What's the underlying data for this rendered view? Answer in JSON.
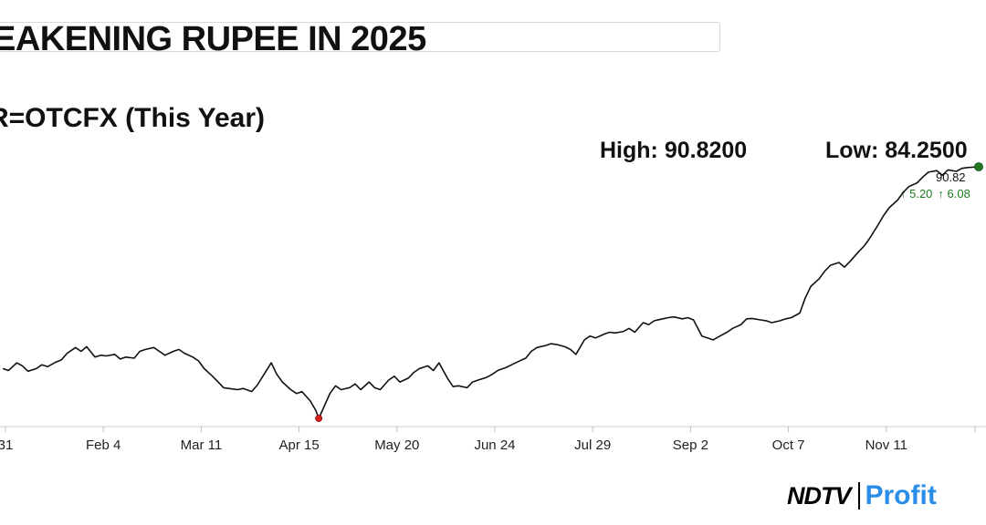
{
  "header": {
    "title": "EAKENING RUPEE IN 2025",
    "subtitle": "R=OTCFX (This Year)"
  },
  "stats": {
    "high_label": "High: 90.8200",
    "low_label": "Low: 84.2500",
    "last_price": "90.82",
    "change_1": "↑ 5.20",
    "change_2": "↑ 6.08"
  },
  "logo": {
    "brand": "NDTV",
    "product": "Profit"
  },
  "colors": {
    "line": "#111111",
    "low_marker": "#d62020",
    "last_marker": "#1f7a1f",
    "change": "#1f7a1f",
    "brand_accent": "#2a8ee8"
  },
  "chart_data": {
    "type": "line",
    "title": "",
    "xlabel": "",
    "ylabel": "",
    "x_ticks": [
      "31",
      "Feb 4",
      "Mar 11",
      "Apr 15",
      "May 20",
      "Jun 24",
      "Jul 29",
      "Sep 2",
      "Oct 7",
      "Nov 11"
    ],
    "x_range": [
      "2024-12-31",
      "2025-12-16"
    ],
    "ylim": [
      84.25,
      90.82
    ],
    "grid": false,
    "markers": [
      {
        "label": "low",
        "date": "2025-04-24",
        "value": 84.25
      },
      {
        "label": "last",
        "date": "2025-12-16",
        "value": 90.82
      }
    ],
    "series": [
      {
        "points": [
          [
            "2025-01-01",
            85.55
          ],
          [
            "2025-01-03",
            85.5
          ],
          [
            "2025-01-06",
            85.7
          ],
          [
            "2025-01-08",
            85.62
          ],
          [
            "2025-01-10",
            85.48
          ],
          [
            "2025-01-13",
            85.55
          ],
          [
            "2025-01-15",
            85.65
          ],
          [
            "2025-01-17",
            85.6
          ],
          [
            "2025-01-20",
            85.72
          ],
          [
            "2025-01-22",
            85.78
          ],
          [
            "2025-01-24",
            85.95
          ],
          [
            "2025-01-27",
            86.1
          ],
          [
            "2025-01-29",
            86.0
          ],
          [
            "2025-01-31",
            86.12
          ],
          [
            "2025-02-03",
            85.85
          ],
          [
            "2025-02-05",
            85.9
          ],
          [
            "2025-02-07",
            85.88
          ],
          [
            "2025-02-10",
            85.92
          ],
          [
            "2025-02-12",
            85.8
          ],
          [
            "2025-02-14",
            85.85
          ],
          [
            "2025-02-17",
            85.82
          ],
          [
            "2025-02-19",
            86.0
          ],
          [
            "2025-02-21",
            86.05
          ],
          [
            "2025-02-24",
            86.1
          ],
          [
            "2025-02-26",
            86.0
          ],
          [
            "2025-02-28",
            85.9
          ],
          [
            "2025-03-03",
            86.0
          ],
          [
            "2025-03-05",
            86.05
          ],
          [
            "2025-03-07",
            85.95
          ],
          [
            "2025-03-10",
            85.85
          ],
          [
            "2025-03-12",
            85.75
          ],
          [
            "2025-03-14",
            85.55
          ],
          [
            "2025-03-17",
            85.35
          ],
          [
            "2025-03-19",
            85.2
          ],
          [
            "2025-03-21",
            85.05
          ],
          [
            "2025-03-24",
            85.02
          ],
          [
            "2025-03-26",
            85.0
          ],
          [
            "2025-03-28",
            85.03
          ],
          [
            "2025-03-31",
            84.95
          ],
          [
            "2025-04-02",
            85.12
          ],
          [
            "2025-04-04",
            85.35
          ],
          [
            "2025-04-07",
            85.7
          ],
          [
            "2025-04-09",
            85.4
          ],
          [
            "2025-04-11",
            85.2
          ],
          [
            "2025-04-14",
            85.0
          ],
          [
            "2025-04-16",
            84.9
          ],
          [
            "2025-04-18",
            84.95
          ],
          [
            "2025-04-21",
            84.7
          ],
          [
            "2025-04-23",
            84.45
          ],
          [
            "2025-04-24",
            84.25
          ],
          [
            "2025-04-28",
            84.9
          ],
          [
            "2025-04-30",
            85.1
          ],
          [
            "2025-05-02",
            85.0
          ],
          [
            "2025-05-05",
            85.05
          ],
          [
            "2025-05-07",
            85.15
          ],
          [
            "2025-05-09",
            85.0
          ],
          [
            "2025-05-12",
            85.2
          ],
          [
            "2025-05-14",
            85.05
          ],
          [
            "2025-05-16",
            85.0
          ],
          [
            "2025-05-19",
            85.25
          ],
          [
            "2025-05-21",
            85.35
          ],
          [
            "2025-05-23",
            85.2
          ],
          [
            "2025-05-26",
            85.3
          ],
          [
            "2025-05-28",
            85.45
          ],
          [
            "2025-05-30",
            85.55
          ],
          [
            "2025-06-02",
            85.62
          ],
          [
            "2025-06-04",
            85.5
          ],
          [
            "2025-06-06",
            85.7
          ],
          [
            "2025-06-09",
            85.3
          ],
          [
            "2025-06-11",
            85.08
          ],
          [
            "2025-06-13",
            85.1
          ],
          [
            "2025-06-16",
            85.05
          ],
          [
            "2025-06-18",
            85.2
          ],
          [
            "2025-06-20",
            85.25
          ],
          [
            "2025-06-23",
            85.32
          ],
          [
            "2025-06-25",
            85.4
          ],
          [
            "2025-06-27",
            85.5
          ],
          [
            "2025-06-30",
            85.58
          ],
          [
            "2025-07-02",
            85.65
          ],
          [
            "2025-07-04",
            85.72
          ],
          [
            "2025-07-07",
            85.82
          ],
          [
            "2025-07-09",
            86.0
          ],
          [
            "2025-07-11",
            86.1
          ],
          [
            "2025-07-14",
            86.15
          ],
          [
            "2025-07-16",
            86.2
          ],
          [
            "2025-07-18",
            86.18
          ],
          [
            "2025-07-21",
            86.12
          ],
          [
            "2025-07-23",
            86.05
          ],
          [
            "2025-07-25",
            85.92
          ],
          [
            "2025-07-28",
            86.3
          ],
          [
            "2025-07-30",
            86.4
          ],
          [
            "2025-08-01",
            86.35
          ],
          [
            "2025-08-04",
            86.45
          ],
          [
            "2025-08-06",
            86.5
          ],
          [
            "2025-08-08",
            86.48
          ],
          [
            "2025-08-11",
            86.52
          ],
          [
            "2025-08-13",
            86.6
          ],
          [
            "2025-08-15",
            86.5
          ],
          [
            "2025-08-18",
            86.75
          ],
          [
            "2025-08-20",
            86.7
          ],
          [
            "2025-08-22",
            86.8
          ],
          [
            "2025-08-25",
            86.85
          ],
          [
            "2025-08-27",
            86.88
          ],
          [
            "2025-08-29",
            86.9
          ],
          [
            "2025-09-01",
            86.85
          ],
          [
            "2025-09-03",
            86.88
          ],
          [
            "2025-09-05",
            86.82
          ],
          [
            "2025-09-08",
            86.4
          ],
          [
            "2025-09-10",
            86.35
          ],
          [
            "2025-09-12",
            86.3
          ],
          [
            "2025-09-15",
            86.42
          ],
          [
            "2025-09-17",
            86.5
          ],
          [
            "2025-09-19",
            86.6
          ],
          [
            "2025-09-22",
            86.7
          ],
          [
            "2025-09-24",
            86.85
          ],
          [
            "2025-09-26",
            86.86
          ],
          [
            "2025-09-29",
            86.82
          ],
          [
            "2025-10-01",
            86.8
          ],
          [
            "2025-10-03",
            86.75
          ],
          [
            "2025-10-06",
            86.8
          ],
          [
            "2025-10-08",
            86.85
          ],
          [
            "2025-10-10",
            86.88
          ],
          [
            "2025-10-13",
            87.0
          ],
          [
            "2025-10-15",
            87.4
          ],
          [
            "2025-10-17",
            87.7
          ],
          [
            "2025-10-20",
            87.9
          ],
          [
            "2025-10-22",
            88.1
          ],
          [
            "2025-10-24",
            88.25
          ],
          [
            "2025-10-27",
            88.32
          ],
          [
            "2025-10-29",
            88.2
          ],
          [
            "2025-10-31",
            88.35
          ],
          [
            "2025-11-03",
            88.6
          ],
          [
            "2025-11-05",
            88.75
          ],
          [
            "2025-11-07",
            88.95
          ],
          [
            "2025-11-10",
            89.3
          ],
          [
            "2025-11-12",
            89.55
          ],
          [
            "2025-11-14",
            89.75
          ],
          [
            "2025-11-17",
            89.95
          ],
          [
            "2025-11-19",
            90.15
          ],
          [
            "2025-11-21",
            90.3
          ],
          [
            "2025-11-24",
            90.4
          ],
          [
            "2025-11-26",
            90.55
          ],
          [
            "2025-11-28",
            90.68
          ],
          [
            "2025-12-01",
            90.72
          ],
          [
            "2025-12-03",
            90.6
          ],
          [
            "2025-12-05",
            90.74
          ],
          [
            "2025-12-08",
            90.7
          ],
          [
            "2025-12-10",
            90.78
          ],
          [
            "2025-12-12",
            90.8
          ],
          [
            "2025-12-16",
            90.82
          ]
        ]
      }
    ]
  }
}
